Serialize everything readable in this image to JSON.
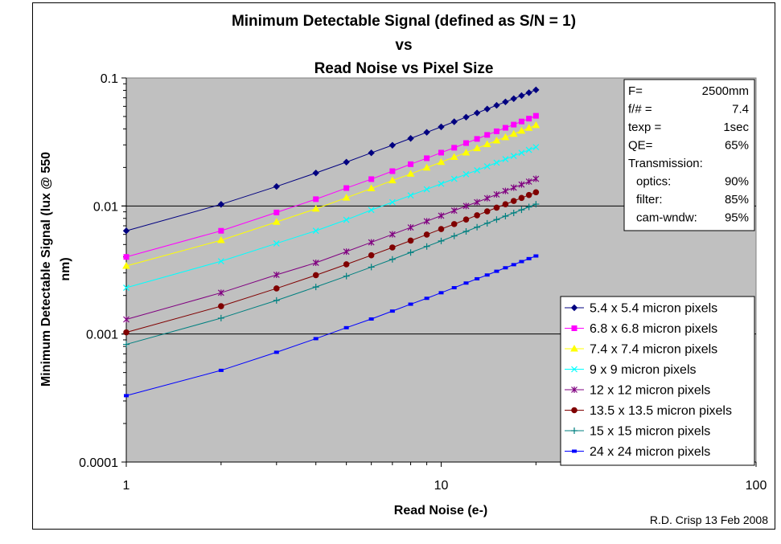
{
  "chart_data": {
    "type": "line",
    "title_lines": [
      "Minimum Detectable Signal (defined as S/N = 1)",
      "vs",
      "Read Noise vs Pixel Size"
    ],
    "xlabel": "Read Noise (e-)",
    "ylabel_lines": [
      "Minimum Detectable Signal (lux @ 550",
      "nm)"
    ],
    "x_scale": "log",
    "y_scale": "log",
    "xlim": [
      1,
      100
    ],
    "ylim": [
      0.0001,
      0.1
    ],
    "x_tick_labels": [
      "1",
      "10",
      "100"
    ],
    "y_tick_labels": [
      "0.0001",
      "0.001",
      "0.01",
      "0.1"
    ],
    "grid": "horizontal major lines",
    "plot_background": "#c0c0c0",
    "legend_position": "lower-right",
    "x": [
      1,
      2,
      3,
      4,
      5,
      6,
      7,
      8,
      9,
      10,
      11,
      12,
      13,
      14,
      15,
      16,
      17,
      18,
      19,
      20
    ],
    "series": [
      {
        "name": "5.4 x 5.4 micron pixels",
        "color": "#000080",
        "marker": "diamond",
        "values": [
          0.0064,
          0.0103,
          0.0142,
          0.0181,
          0.022,
          0.026,
          0.0298,
          0.0337,
          0.0376,
          0.0415,
          0.0455,
          0.0494,
          0.0533,
          0.0572,
          0.0611,
          0.065,
          0.0689,
          0.0728,
          0.0767,
          0.0807
        ]
      },
      {
        "name": "6.8 x 6.8 micron pixels",
        "color": "#ff00ff",
        "marker": "square",
        "values": [
          0.004,
          0.0064,
          0.0089,
          0.0113,
          0.0138,
          0.0162,
          0.0187,
          0.0212,
          0.0236,
          0.0261,
          0.0285,
          0.031,
          0.0334,
          0.0359,
          0.0383,
          0.0408,
          0.0432,
          0.0457,
          0.0481,
          0.0506
        ]
      },
      {
        "name": "7.4 x 7.4 micron pixels",
        "color": "#ffff00",
        "marker": "triangle",
        "values": [
          0.0034,
          0.0054,
          0.0075,
          0.0095,
          0.0116,
          0.0137,
          0.0158,
          0.0178,
          0.0199,
          0.022,
          0.0241,
          0.0261,
          0.0282,
          0.0303,
          0.0324,
          0.0344,
          0.0365,
          0.0386,
          0.0407,
          0.0427
        ]
      },
      {
        "name": "9 x 9 micron pixels",
        "color": "#00ffff",
        "marker": "x",
        "values": [
          0.0023,
          0.0037,
          0.0051,
          0.0064,
          0.0078,
          0.0093,
          0.0107,
          0.0121,
          0.0135,
          0.0149,
          0.0163,
          0.0177,
          0.019,
          0.0204,
          0.0218,
          0.0232,
          0.0246,
          0.026,
          0.0274,
          0.0288
        ]
      },
      {
        "name": "12 x 12 micron pixels",
        "color": "#800080",
        "marker": "star",
        "values": [
          0.0013,
          0.0021,
          0.0029,
          0.0036,
          0.0044,
          0.0052,
          0.006,
          0.0068,
          0.0076,
          0.0084,
          0.0092,
          0.01,
          0.0107,
          0.0115,
          0.0123,
          0.0131,
          0.0139,
          0.0147,
          0.0155,
          0.0163
        ]
      },
      {
        "name": "13.5 x 13.5 micron pixels",
        "color": "#800000",
        "marker": "circle",
        "values": [
          0.00103,
          0.00165,
          0.00227,
          0.00288,
          0.0035,
          0.00412,
          0.00474,
          0.00536,
          0.00598,
          0.0066,
          0.00722,
          0.00784,
          0.00846,
          0.00908,
          0.0097,
          0.01032,
          0.01094,
          0.01156,
          0.01218,
          0.0128
        ]
      },
      {
        "name": "15 x 15 micron pixels",
        "color": "#008080",
        "marker": "plus",
        "values": [
          0.00083,
          0.00133,
          0.00183,
          0.00233,
          0.00283,
          0.00333,
          0.00383,
          0.00433,
          0.00483,
          0.00533,
          0.00583,
          0.00633,
          0.00683,
          0.00733,
          0.00783,
          0.00833,
          0.00883,
          0.00933,
          0.00983,
          0.01033
        ]
      },
      {
        "name": "24 x 24 micron pixels",
        "color": "#0000ff",
        "marker": "dash",
        "values": [
          0.00033,
          0.00052,
          0.00072,
          0.00092,
          0.00112,
          0.00131,
          0.00151,
          0.00171,
          0.0019,
          0.0021,
          0.0023,
          0.0025,
          0.0027,
          0.00289,
          0.00309,
          0.00329,
          0.00348,
          0.00368,
          0.00388,
          0.00407
        ]
      }
    ]
  },
  "params_box": {
    "rows": [
      {
        "label": "F=",
        "value": "2500mm"
      },
      {
        "label": "f/# =",
        "value": "7.4"
      },
      {
        "label": "texp =",
        "value": "1sec"
      },
      {
        "label": "QE=",
        "value": "65%"
      },
      {
        "label": "Transmission:",
        "value": ""
      },
      {
        "label": "optics:",
        "value": "90%"
      },
      {
        "label": "filter:",
        "value": "85%"
      },
      {
        "label": "cam-wndw:",
        "value": "95%"
      }
    ]
  },
  "footer": {
    "credit": "R.D. Crisp 13 Feb 2008"
  }
}
